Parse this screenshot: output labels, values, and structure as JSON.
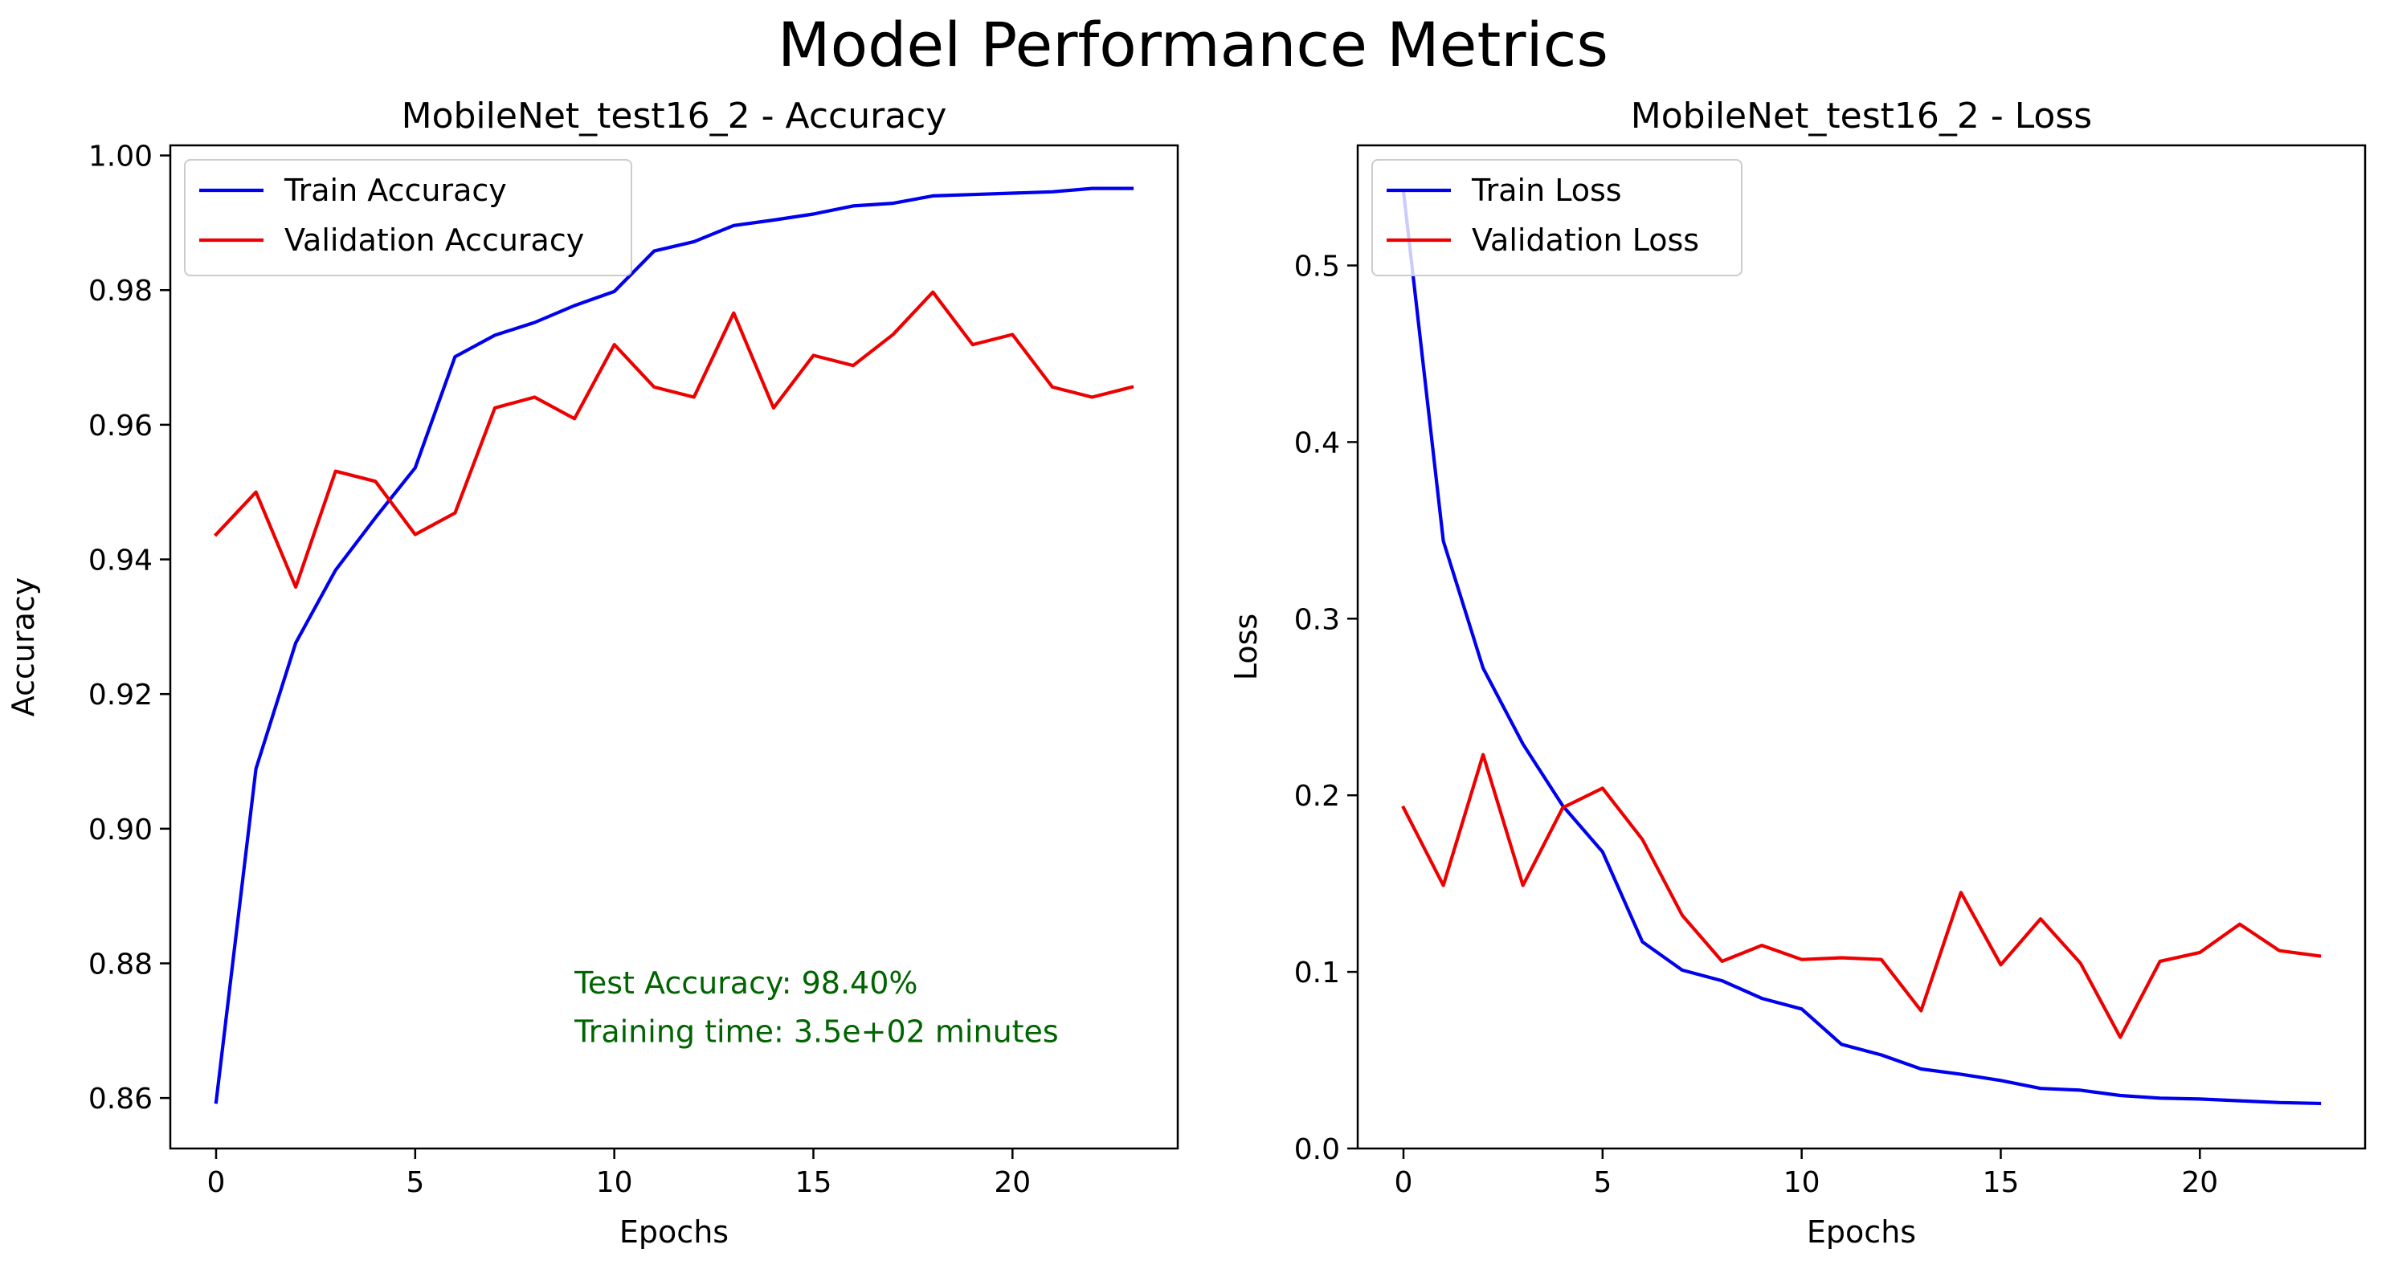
{
  "figure": {
    "suptitle": "Model Performance Metrics"
  },
  "colors": {
    "train": "#0000ee",
    "validation": "#ee0000",
    "annotation": "#006400",
    "axes": "#000000",
    "background": "#ffffff"
  },
  "chart_data": [
    {
      "type": "line",
      "title": "MobileNet_test16_2 - Accuracy",
      "xlabel": "Epochs",
      "ylabel": "Accuracy",
      "xlim": [
        -1.15,
        24.15
      ],
      "ylim": [
        0.8525,
        1.0015
      ],
      "xticks": [
        0,
        5,
        10,
        15,
        20
      ],
      "yticks": [
        0.86,
        0.88,
        0.9,
        0.92,
        0.94,
        0.96,
        0.98,
        1.0
      ],
      "ytick_labels": [
        "0.86",
        "0.88",
        "0.90",
        "0.92",
        "0.94",
        "0.96",
        "0.98",
        "1.00"
      ],
      "grid": false,
      "legend_position": "upper left",
      "x": [
        0,
        1,
        2,
        3,
        4,
        5,
        6,
        7,
        8,
        9,
        10,
        11,
        12,
        13,
        14,
        15,
        16,
        17,
        18,
        19,
        20,
        21,
        22,
        23
      ],
      "series": [
        {
          "name": "Train Accuracy",
          "color": "#0000ee",
          "values": [
            0.8594,
            0.9089,
            0.9276,
            0.9384,
            0.9462,
            0.9536,
            0.9701,
            0.9733,
            0.9752,
            0.9777,
            0.9798,
            0.9858,
            0.9872,
            0.9896,
            0.9904,
            0.9913,
            0.9925,
            0.9929,
            0.994,
            0.9942,
            0.9944,
            0.9946,
            0.9951,
            0.9951
          ]
        },
        {
          "name": "Validation Accuracy",
          "color": "#ee0000",
          "values": [
            0.9437,
            0.95,
            0.9359,
            0.9531,
            0.9516,
            0.9437,
            0.9469,
            0.9625,
            0.9641,
            0.9609,
            0.9719,
            0.9656,
            0.9641,
            0.9766,
            0.9625,
            0.9703,
            0.9688,
            0.9734,
            0.9797,
            0.9719,
            0.9734,
            0.9656,
            0.9641,
            0.9656
          ]
        }
      ],
      "annotations": [
        {
          "text": "Test Accuracy: 98.40%",
          "x": 9,
          "y": 0.8755
        },
        {
          "text": "Training time: 3.5e+02 minutes",
          "x": 9,
          "y": 0.8683
        }
      ]
    },
    {
      "type": "line",
      "title": "MobileNet_test16_2 - Loss",
      "xlabel": "Epochs",
      "ylabel": "Loss",
      "xlim": [
        -1.15,
        24.15
      ],
      "ylim": [
        0.0,
        0.568
      ],
      "xticks": [
        0,
        5,
        10,
        15,
        20
      ],
      "yticks": [
        0.0,
        0.1,
        0.2,
        0.3,
        0.4,
        0.5
      ],
      "ytick_labels": [
        "0.0",
        "0.1",
        "0.2",
        "0.3",
        "0.4",
        "0.5"
      ],
      "grid": false,
      "legend_position": "upper left",
      "x": [
        0,
        1,
        2,
        3,
        4,
        5,
        6,
        7,
        8,
        9,
        10,
        11,
        12,
        13,
        14,
        15,
        16,
        17,
        18,
        19,
        20,
        21,
        22,
        23
      ],
      "series": [
        {
          "name": "Train Loss",
          "color": "#0000ee",
          "values": [
            0.542,
            0.344,
            0.272,
            0.229,
            0.194,
            0.168,
            0.117,
            0.101,
            0.095,
            0.085,
            0.079,
            0.059,
            0.053,
            0.045,
            0.042,
            0.0385,
            0.034,
            0.033,
            0.03,
            0.0285,
            0.028,
            0.027,
            0.026,
            0.0255
          ]
        },
        {
          "name": "Validation Loss",
          "color": "#ee0000",
          "values": [
            0.193,
            0.149,
            0.223,
            0.149,
            0.193,
            0.204,
            0.175,
            0.132,
            0.106,
            0.115,
            0.107,
            0.108,
            0.107,
            0.078,
            0.145,
            0.104,
            0.13,
            0.105,
            0.063,
            0.106,
            0.111,
            0.127,
            0.112,
            0.109
          ]
        }
      ],
      "annotations": []
    }
  ]
}
